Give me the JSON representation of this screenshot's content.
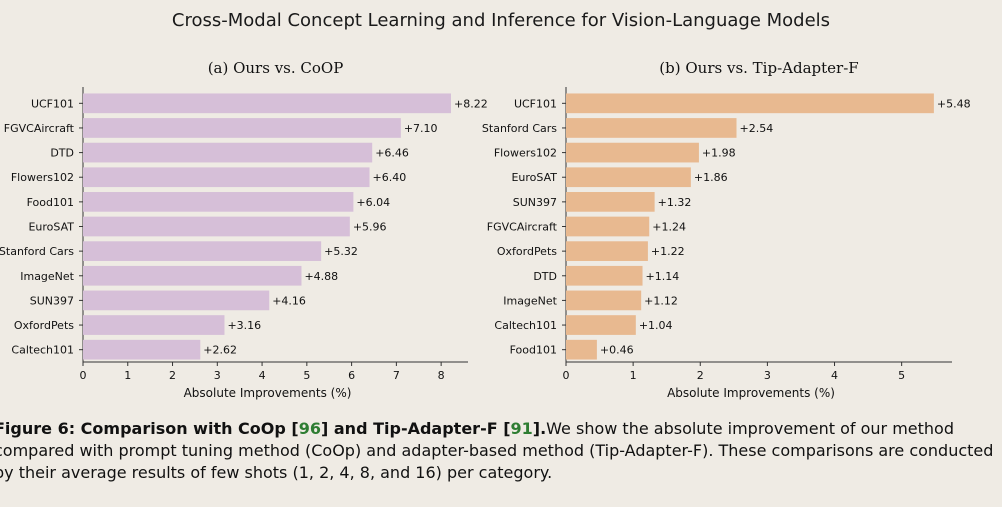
{
  "page": {
    "title": "Cross-Modal Concept Learning and Inference for Vision-Language Models"
  },
  "chart_data": [
    {
      "type": "bar",
      "orientation": "horizontal",
      "title": "(a) Ours vs. CoOP",
      "xlabel": "Absolute Improvements (%)",
      "ylabel": "",
      "xlim": [
        0,
        8.6
      ],
      "xticks": [
        0,
        1,
        2,
        3,
        4,
        5,
        6,
        7,
        8
      ],
      "color": "#d6bfd8",
      "grid": false,
      "categories": [
        "UCF101",
        "FGVCAircraft",
        "DTD",
        "Flowers102",
        "Food101",
        "EuroSAT",
        "Stanford Cars",
        "ImageNet",
        "SUN397",
        "OxfordPets",
        "Caltech101"
      ],
      "values": [
        8.22,
        7.1,
        6.46,
        6.4,
        6.04,
        5.96,
        5.32,
        4.88,
        4.16,
        3.16,
        2.62
      ],
      "value_labels": [
        "+8.22",
        "+7.10",
        "+6.46",
        "+6.40",
        "+6.04",
        "+5.96",
        "+5.32",
        "+4.88",
        "+4.16",
        "+3.16",
        "+2.62"
      ]
    },
    {
      "type": "bar",
      "orientation": "horizontal",
      "title": "(b) Ours vs. Tip-Adapter-F",
      "xlabel": "Absolute Improvements (%)",
      "ylabel": "",
      "xlim": [
        0,
        5.75
      ],
      "xticks": [
        0,
        1,
        2,
        3,
        4,
        5
      ],
      "color": "#e8b990",
      "grid": false,
      "categories": [
        "UCF101",
        "Stanford Cars",
        "Flowers102",
        "EuroSAT",
        "SUN397",
        "FGVCAircraft",
        "OxfordPets",
        "DTD",
        "ImageNet",
        "Caltech101",
        "Food101"
      ],
      "values": [
        5.48,
        2.54,
        1.98,
        1.86,
        1.32,
        1.24,
        1.22,
        1.14,
        1.12,
        1.04,
        0.46
      ],
      "value_labels": [
        "+5.48",
        "+2.54",
        "+1.98",
        "+1.86",
        "+1.32",
        "+1.24",
        "+1.22",
        "+1.14",
        "+1.12",
        "+1.04",
        "+0.46"
      ]
    }
  ],
  "caption": {
    "label": "Figure 6: Comparison with CoOp [",
    "ref1": "96",
    "mid": "] and Tip-Adapter-F [",
    "ref2": "91",
    "end": "].",
    "text": "We show the absolute improvement of our method compared with prompt tuning method (CoOp) and adapter-based method (Tip-Adapter-F). These comparisons are conducted by their average results of few shots (1, 2, 4, 8, and 16) per category."
  }
}
